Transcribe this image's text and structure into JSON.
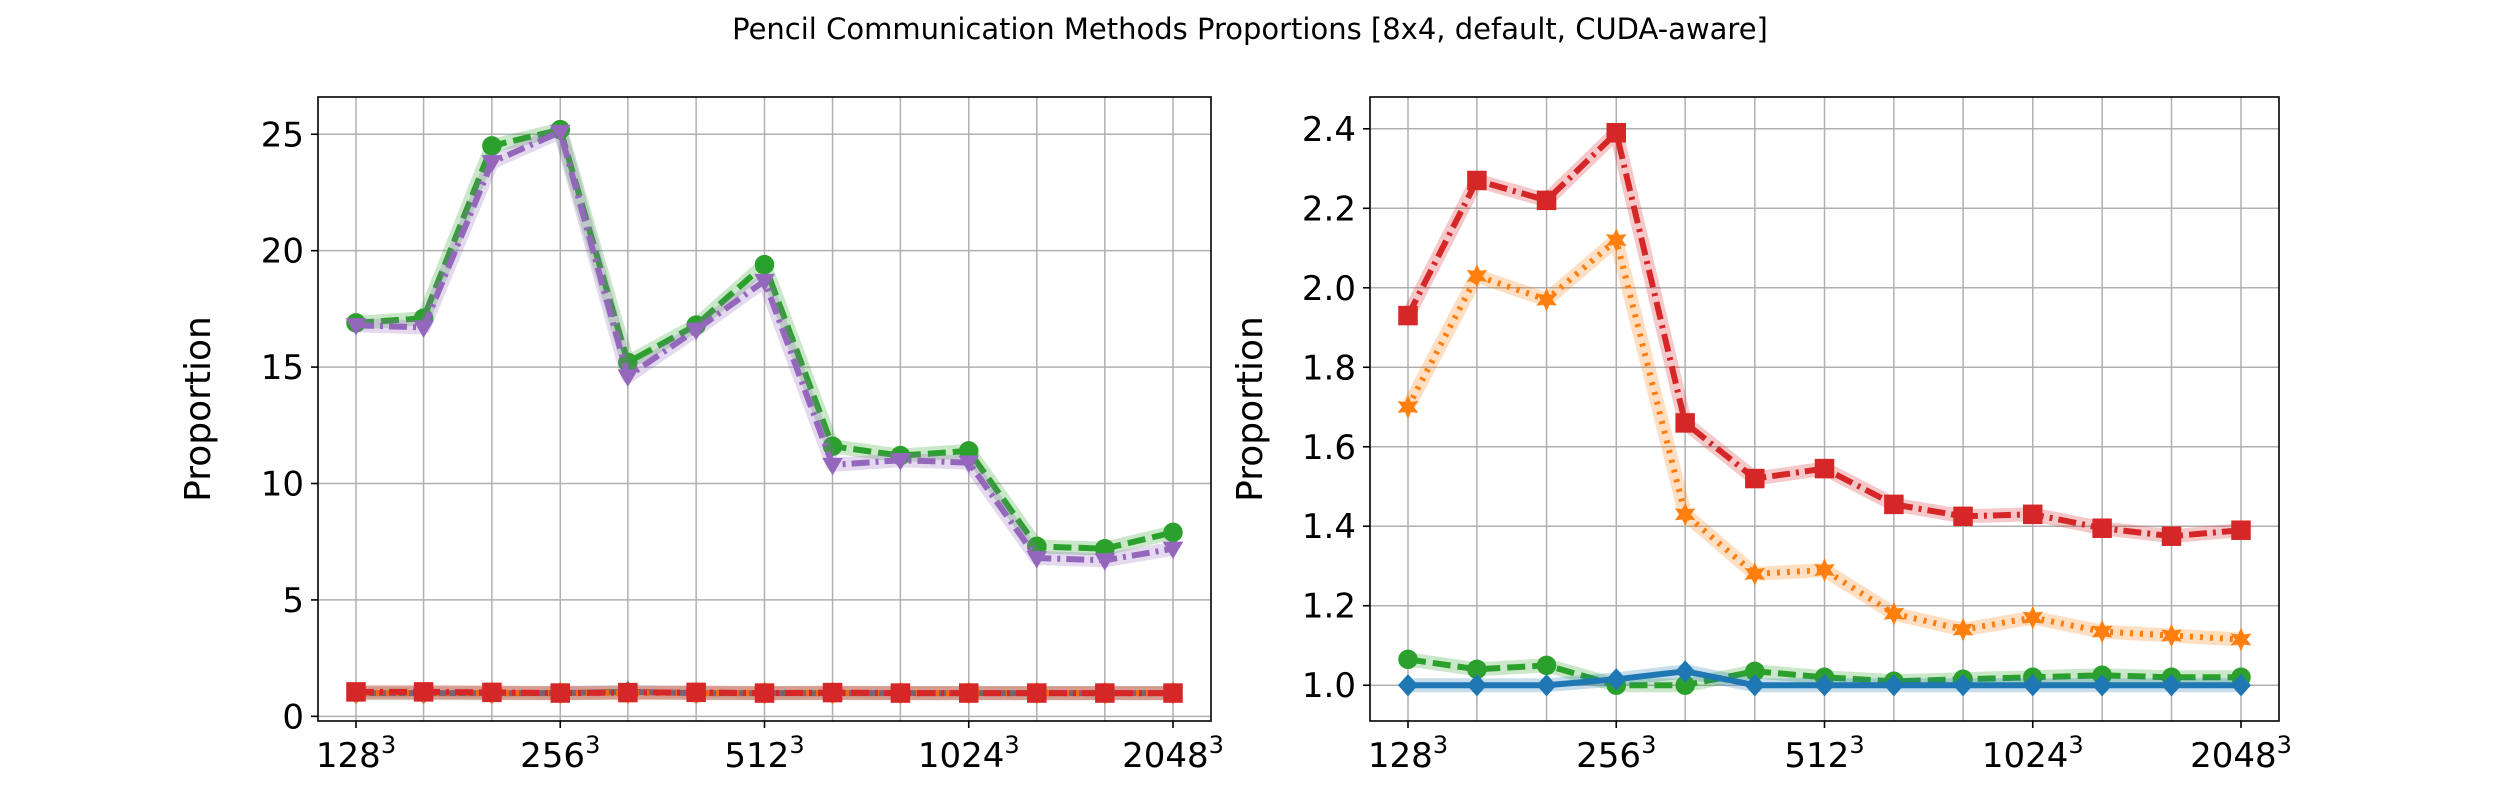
{
  "figure": {
    "title": "Pencil Communication Methods Proportions [8x4, default, CUDA-aware]"
  },
  "colors": {
    "blue": "#1f77b4",
    "orange": "#ff7f0e",
    "green": "#2ca02c",
    "red": "#d62728",
    "purple": "#9467bd",
    "grid": "#b0b0b0"
  },
  "chart_data": [
    {
      "type": "line",
      "title": "",
      "xlabel": "",
      "ylabel": "Proportion",
      "xscale": "log2",
      "x": [
        128,
        161,
        203,
        256,
        322,
        406,
        512,
        645,
        812,
        1024,
        1290,
        1625,
        2048
      ],
      "xticks": [
        128,
        256,
        512,
        1024,
        2048
      ],
      "xtick_labels": [
        {
          "base": "128",
          "exp": "3"
        },
        {
          "base": "256",
          "exp": "3"
        },
        {
          "base": "512",
          "exp": "3"
        },
        {
          "base": "1024",
          "exp": "3"
        },
        {
          "base": "2048",
          "exp": "3"
        }
      ],
      "ylim": [
        -0.2,
        26.6
      ],
      "yticks": [
        0,
        5,
        10,
        15,
        20,
        25
      ],
      "grid": true,
      "series": [
        {
          "color": "#1f77b4",
          "style": "solid",
          "marker": "diamond",
          "values": [
            1.0,
            1.0,
            1.0,
            1.0,
            1.05,
            1.0,
            1.0,
            1.0,
            1.0,
            1.0,
            1.0,
            1.0,
            1.0
          ]
        },
        {
          "color": "#ff7f0e",
          "style": "dotted",
          "marker": "star",
          "values": [
            1.0,
            1.0,
            1.0,
            1.0,
            1.0,
            1.0,
            1.0,
            1.0,
            1.0,
            1.0,
            1.0,
            1.0,
            1.0
          ]
        },
        {
          "color": "#2ca02c",
          "style": "dashed",
          "marker": "circle",
          "values": [
            16.9,
            17.1,
            24.5,
            25.2,
            15.2,
            16.8,
            19.4,
            11.6,
            11.2,
            11.4,
            7.3,
            7.2,
            7.9
          ]
        },
        {
          "color": "#d62728",
          "style": "dashdot",
          "marker": "square",
          "values": [
            1.05,
            1.05,
            1.03,
            1.0,
            1.02,
            1.03,
            1.0,
            1.02,
            1.0,
            1.0,
            1.0,
            1.0,
            1.0
          ]
        },
        {
          "color": "#9467bd",
          "style": "dashdot",
          "marker": "tri_down",
          "values": [
            16.8,
            16.7,
            23.8,
            25.1,
            14.6,
            16.6,
            18.7,
            10.8,
            11.0,
            10.9,
            6.8,
            6.7,
            7.2
          ]
        }
      ]
    },
    {
      "type": "line",
      "title": "",
      "xlabel": "",
      "ylabel": "Proportion",
      "xscale": "log2",
      "x": [
        128,
        161,
        203,
        256,
        322,
        406,
        512,
        645,
        812,
        1024,
        1290,
        1625,
        2048
      ],
      "xticks": [
        128,
        256,
        512,
        1024,
        2048
      ],
      "xtick_labels": [
        {
          "base": "128",
          "exp": "3"
        },
        {
          "base": "256",
          "exp": "3"
        },
        {
          "base": "512",
          "exp": "3"
        },
        {
          "base": "1024",
          "exp": "3"
        },
        {
          "base": "2048",
          "exp": "3"
        }
      ],
      "ylim": [
        0.91,
        2.48
      ],
      "yticks": [
        1.0,
        1.2,
        1.4,
        1.6,
        1.8,
        2.0,
        2.2,
        2.4
      ],
      "ytick_labels": [
        "1.0",
        "1.2",
        "1.4",
        "1.6",
        "1.8",
        "2.0",
        "2.2",
        "2.4"
      ],
      "grid": true,
      "series": [
        {
          "color": "#2ca02c",
          "style": "dashed",
          "marker": "circle",
          "values": [
            1.065,
            1.04,
            1.05,
            1.0,
            1.0,
            1.035,
            1.02,
            1.01,
            1.015,
            1.02,
            1.025,
            1.02,
            1.02
          ]
        },
        {
          "color": "#1f77b4",
          "style": "solid",
          "marker": "diamond",
          "values": [
            1.0,
            1.0,
            1.0,
            1.015,
            1.035,
            1.0,
            1.0,
            1.0,
            1.0,
            1.0,
            1.0,
            1.0,
            1.0
          ]
        },
        {
          "color": "#ff7f0e",
          "style": "dotted",
          "marker": "star",
          "values": [
            1.7,
            2.03,
            1.97,
            2.12,
            1.43,
            1.28,
            1.29,
            1.18,
            1.14,
            1.17,
            1.135,
            1.125,
            1.115
          ]
        },
        {
          "color": "#d62728",
          "style": "dashdot",
          "marker": "square",
          "values": [
            1.93,
            2.27,
            2.22,
            2.39,
            1.66,
            1.52,
            1.545,
            1.455,
            1.425,
            1.43,
            1.395,
            1.375,
            1.39
          ]
        }
      ]
    }
  ]
}
